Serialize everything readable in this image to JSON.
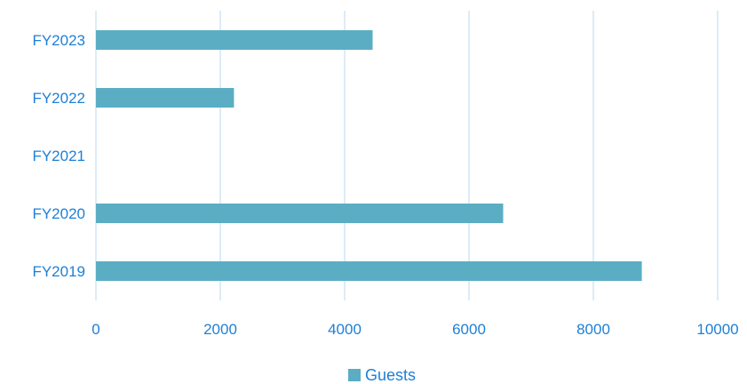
{
  "chart_data": {
    "type": "bar",
    "orientation": "horizontal",
    "categories": [
      "FY2019",
      "FY2020",
      "FY2021",
      "FY2022",
      "FY2023"
    ],
    "series": [
      {
        "name": "Guests",
        "values": [
          8780,
          6550,
          0,
          2220,
          4450
        ]
      }
    ],
    "xlim": [
      0,
      10000
    ],
    "xticks": [
      "0",
      "2000",
      "4000",
      "6000",
      "8000",
      "10000"
    ],
    "grid": true,
    "legend": "bottom",
    "title": "",
    "xlabel": "",
    "ylabel": ""
  },
  "colors": {
    "bar": "#5badc3",
    "grid": "#c9e1f4",
    "label": "#1e7fd6"
  }
}
